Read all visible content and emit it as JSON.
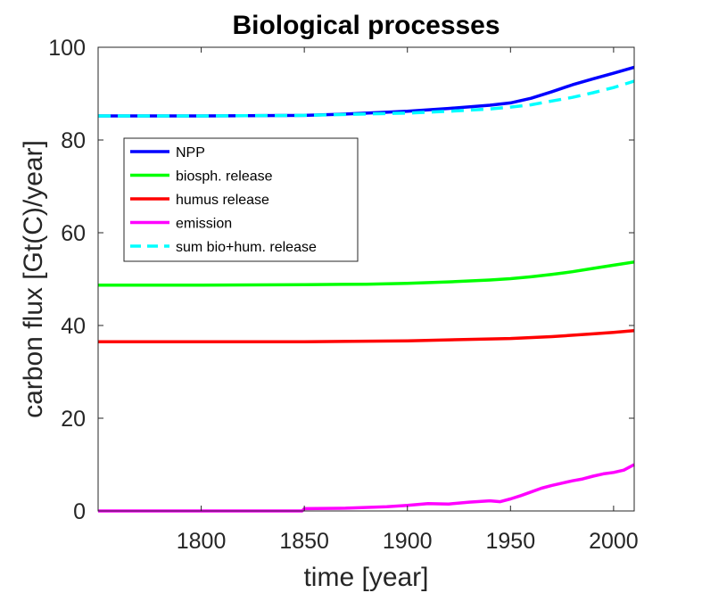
{
  "chart_data": {
    "type": "line",
    "title": "Biological processes",
    "xlabel": "time [year]",
    "ylabel": "carbon flux [Gt(C)/year]",
    "xlim": [
      1750,
      2010
    ],
    "ylim": [
      0,
      100
    ],
    "xticks": [
      1800,
      1850,
      1900,
      1950,
      2000
    ],
    "yticks": [
      0,
      20,
      40,
      60,
      80,
      100
    ],
    "grid": false,
    "legend_position": "upper-left",
    "series": [
      {
        "name": "NPP",
        "color": "#0000ff",
        "style": "solid",
        "x": [
          1750,
          1800,
          1850,
          1870,
          1900,
          1920,
          1940,
          1950,
          1960,
          1970,
          1980,
          1990,
          2000,
          2010
        ],
        "y": [
          85.2,
          85.2,
          85.3,
          85.6,
          86.2,
          86.8,
          87.5,
          88.0,
          89.0,
          90.4,
          91.9,
          93.2,
          94.4,
          95.7
        ]
      },
      {
        "name": "biosph. release",
        "color": "#00ff00",
        "style": "solid",
        "x": [
          1750,
          1800,
          1850,
          1880,
          1900,
          1920,
          1940,
          1950,
          1960,
          1970,
          1980,
          1990,
          2000,
          2010
        ],
        "y": [
          48.7,
          48.7,
          48.8,
          48.9,
          49.1,
          49.4,
          49.8,
          50.1,
          50.5,
          51.0,
          51.6,
          52.3,
          53.0,
          53.7
        ]
      },
      {
        "name": "humus release",
        "color": "#ff0000",
        "style": "solid",
        "x": [
          1750,
          1800,
          1850,
          1900,
          1950,
          1970,
          1990,
          2000,
          2010
        ],
        "y": [
          36.5,
          36.5,
          36.5,
          36.7,
          37.2,
          37.6,
          38.2,
          38.5,
          38.9
        ]
      },
      {
        "name": "emission",
        "color": "#ff00ff",
        "style": "solid",
        "x": [
          1750,
          1800,
          1849,
          1850,
          1870,
          1890,
          1900,
          1910,
          1920,
          1930,
          1940,
          1945,
          1950,
          1955,
          1960,
          1965,
          1970,
          1975,
          1980,
          1985,
          1990,
          1995,
          2000,
          2005,
          2010
        ],
        "y": [
          0,
          0,
          0,
          0.5,
          0.6,
          0.9,
          1.2,
          1.6,
          1.5,
          1.9,
          2.2,
          2.0,
          2.6,
          3.3,
          4.1,
          4.9,
          5.5,
          6.0,
          6.5,
          6.9,
          7.5,
          8.0,
          8.3,
          8.8,
          10.0
        ]
      },
      {
        "name": "sum bio+hum. release",
        "color": "#00ffff",
        "style": "dashed",
        "x": [
          1750,
          1800,
          1850,
          1900,
          1920,
          1940,
          1950,
          1960,
          1970,
          1980,
          1990,
          2000,
          2010
        ],
        "y": [
          85.2,
          85.2,
          85.3,
          85.8,
          86.2,
          86.7,
          87.1,
          87.6,
          88.4,
          89.2,
          90.2,
          91.3,
          92.7
        ]
      }
    ]
  }
}
